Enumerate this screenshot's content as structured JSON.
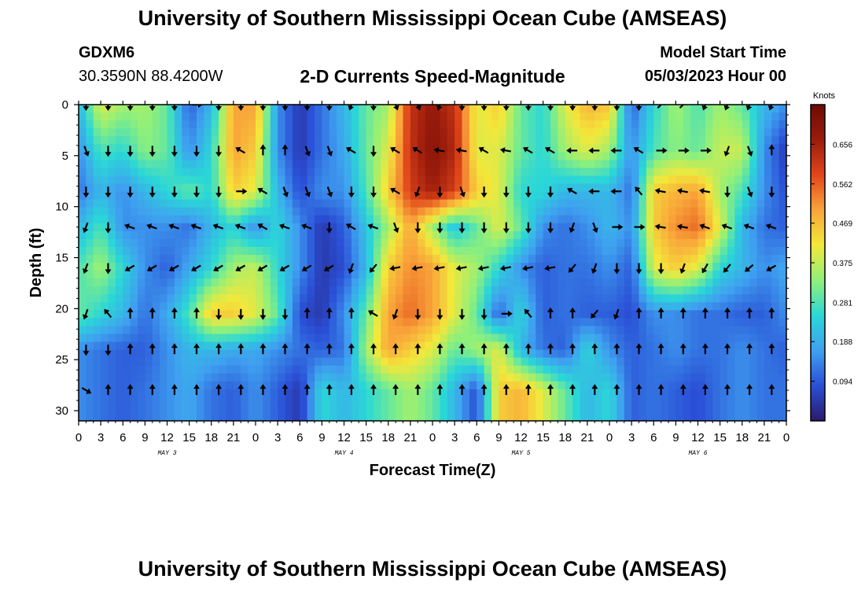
{
  "page": {
    "title": "University of Southern Mississippi Ocean Cube (AMSEAS)",
    "bottom_title": "University of Southern Mississippi Ocean Cube (AMSEAS)",
    "station_id": "GDXM6",
    "station_coords": "30.3590N  88.4200W",
    "subtitle": "2-D Currents Speed-Magnitude",
    "start_label": "Model Start Time",
    "start_value": "05/03/2023 Hour 00"
  },
  "colors": {
    "scale": [
      "#2b1b6b",
      "#2a4fd6",
      "#3fa0f0",
      "#2ad7d7",
      "#8ff07a",
      "#f3e83a",
      "#f9a43a",
      "#e0461a",
      "#9b1c0c",
      "#6e0a05"
    ],
    "arrow": "#000000",
    "frame": "#000000"
  },
  "chart_data": {
    "type": "heatmap",
    "title": "2-D Currents Speed-Magnitude",
    "xlabel": "Forecast Time(Z)",
    "ylabel": "Depth (ft)",
    "colorbar_label": "Knots",
    "colorbar_ticks": [
      "0.656",
      "0.562",
      "0.469",
      "0.375",
      "0.281",
      "0.188",
      "0.094"
    ],
    "colorbar_range": [
      0,
      0.75
    ],
    "x_tick_labels": [
      "0",
      "3",
      "6",
      "9",
      "12",
      "15",
      "18",
      "21",
      "0",
      "3",
      "6",
      "9",
      "12",
      "15",
      "18",
      "21",
      "0",
      "3",
      "6",
      "9",
      "12",
      "15",
      "18",
      "21",
      "0",
      "3",
      "6",
      "9",
      "12",
      "15",
      "18",
      "21",
      "0"
    ],
    "x_range_hours": [
      0,
      96
    ],
    "day_labels": [
      "MAY 3",
      "MAY 4",
      "MAY 5",
      "MAY 6"
    ],
    "y_tick_labels": [
      "0",
      "5",
      "10",
      "15",
      "20",
      "25",
      "30"
    ],
    "y_ticks": [
      0,
      5,
      10,
      15,
      20,
      25,
      30
    ],
    "ylim": [
      0,
      31
    ],
    "depths_ft": [
      0,
      4.5,
      8.5,
      12,
      16,
      20.5,
      24,
      28
    ],
    "times_h": [
      0,
      3,
      6,
      9,
      12,
      15,
      18,
      21,
      24,
      27,
      30,
      33,
      36,
      39,
      42,
      45,
      48,
      51,
      54,
      57,
      60,
      63,
      66,
      69,
      72,
      75,
      78,
      81,
      84,
      87,
      90,
      93,
      96
    ],
    "speed_knots": [
      [
        0.2,
        0.4,
        0.35,
        0.35,
        0.3,
        0.1,
        0.2,
        0.5,
        0.5,
        0.15,
        0.05,
        0.12,
        0.2,
        0.3,
        0.35,
        0.62,
        0.68,
        0.62,
        0.4,
        0.45,
        0.3,
        0.25,
        0.4,
        0.48,
        0.46,
        0.1,
        0.25,
        0.35,
        0.28,
        0.35,
        0.3,
        0.2,
        0.15
      ],
      [
        0.15,
        0.28,
        0.25,
        0.33,
        0.3,
        0.15,
        0.25,
        0.5,
        0.45,
        0.15,
        0.05,
        0.12,
        0.18,
        0.3,
        0.4,
        0.62,
        0.7,
        0.64,
        0.4,
        0.4,
        0.3,
        0.25,
        0.35,
        0.4,
        0.35,
        0.15,
        0.28,
        0.33,
        0.3,
        0.38,
        0.38,
        0.15,
        0.05
      ],
      [
        0.12,
        0.2,
        0.15,
        0.2,
        0.25,
        0.3,
        0.25,
        0.45,
        0.4,
        0.2,
        0.08,
        0.15,
        0.15,
        0.28,
        0.45,
        0.6,
        0.66,
        0.6,
        0.45,
        0.4,
        0.25,
        0.25,
        0.2,
        0.2,
        0.2,
        0.12,
        0.45,
        0.48,
        0.5,
        0.35,
        0.28,
        0.15,
        0.08
      ],
      [
        0.2,
        0.28,
        0.15,
        0.15,
        0.15,
        0.12,
        0.2,
        0.25,
        0.15,
        0.25,
        0.15,
        0.05,
        0.1,
        0.22,
        0.35,
        0.5,
        0.35,
        0.22,
        0.3,
        0.4,
        0.3,
        0.15,
        0.12,
        0.15,
        0.2,
        0.15,
        0.45,
        0.52,
        0.55,
        0.4,
        0.2,
        0.12,
        0.1
      ],
      [
        0.28,
        0.35,
        0.25,
        0.15,
        0.1,
        0.18,
        0.25,
        0.35,
        0.38,
        0.25,
        0.15,
        0.05,
        0.08,
        0.2,
        0.45,
        0.52,
        0.5,
        0.4,
        0.35,
        0.25,
        0.15,
        0.1,
        0.12,
        0.12,
        0.15,
        0.1,
        0.4,
        0.45,
        0.4,
        0.25,
        0.2,
        0.15,
        0.18
      ],
      [
        0.3,
        0.25,
        0.2,
        0.12,
        0.18,
        0.28,
        0.45,
        0.45,
        0.4,
        0.3,
        0.08,
        0.05,
        0.15,
        0.3,
        0.5,
        0.55,
        0.5,
        0.4,
        0.3,
        0.1,
        0.25,
        0.1,
        0.12,
        0.1,
        0.1,
        0.08,
        0.15,
        0.15,
        0.12,
        0.12,
        0.1,
        0.1,
        0.15
      ],
      [
        0.15,
        0.12,
        0.1,
        0.1,
        0.15,
        0.2,
        0.2,
        0.18,
        0.18,
        0.15,
        0.12,
        0.1,
        0.12,
        0.35,
        0.5,
        0.45,
        0.4,
        0.3,
        0.35,
        0.4,
        0.2,
        0.12,
        0.1,
        0.25,
        0.15,
        0.1,
        0.12,
        0.15,
        0.12,
        0.12,
        0.15,
        0.12,
        0.1
      ],
      [
        0.15,
        0.12,
        0.1,
        0.12,
        0.15,
        0.18,
        0.12,
        0.1,
        0.15,
        0.1,
        0.05,
        0.25,
        0.2,
        0.25,
        0.3,
        0.35,
        0.3,
        0.2,
        0.08,
        0.45,
        0.48,
        0.4,
        0.3,
        0.2,
        0.25,
        0.1,
        0.12,
        0.1,
        0.08,
        0.12,
        0.15,
        0.12,
        0.12
      ]
    ],
    "arrow_times_h": [
      1,
      4,
      7,
      10,
      13,
      16,
      19,
      22,
      25,
      28,
      31,
      34,
      37,
      40,
      43,
      46,
      49,
      52,
      55,
      58,
      61,
      64,
      67,
      70,
      73,
      76,
      79,
      82,
      85,
      88,
      91,
      94
    ],
    "arrow_direction_deg": [
      [
        180,
        180,
        180,
        180,
        180,
        90,
        180,
        180,
        180,
        180,
        180,
        180,
        200,
        180,
        160,
        160,
        200,
        180,
        180,
        180,
        180,
        180,
        180,
        180,
        180,
        180,
        45,
        45,
        200,
        200,
        200,
        200
      ],
      [
        160,
        180,
        180,
        180,
        180,
        180,
        180,
        300,
        0,
        0,
        160,
        160,
        300,
        180,
        300,
        300,
        280,
        280,
        300,
        280,
        300,
        300,
        270,
        270,
        270,
        300,
        90,
        90,
        90,
        200,
        160,
        0
      ],
      [
        180,
        180,
        180,
        180,
        180,
        180,
        180,
        90,
        300,
        160,
        160,
        160,
        180,
        180,
        300,
        200,
        180,
        160,
        180,
        180,
        180,
        180,
        300,
        270,
        270,
        320,
        280,
        280,
        280,
        180,
        160,
        180
      ],
      [
        200,
        180,
        290,
        290,
        290,
        290,
        290,
        290,
        300,
        290,
        290,
        180,
        300,
        290,
        160,
        180,
        180,
        180,
        180,
        180,
        180,
        180,
        200,
        160,
        90,
        90,
        280,
        280,
        290,
        290,
        290,
        290
      ],
      [
        200,
        180,
        240,
        240,
        240,
        240,
        240,
        240,
        240,
        240,
        240,
        240,
        200,
        220,
        260,
        260,
        260,
        260,
        260,
        260,
        260,
        260,
        220,
        200,
        180,
        180,
        180,
        200,
        210,
        220,
        230,
        240
      ],
      [
        200,
        320,
        0,
        0,
        0,
        0,
        180,
        180,
        180,
        180,
        0,
        0,
        0,
        300,
        200,
        180,
        180,
        180,
        180,
        90,
        320,
        0,
        0,
        220,
        200,
        0,
        0,
        0,
        0,
        0,
        0,
        0
      ],
      [
        180,
        180,
        0,
        0,
        0,
        0,
        0,
        0,
        0,
        0,
        0,
        0,
        0,
        0,
        0,
        0,
        0,
        0,
        0,
        0,
        0,
        0,
        0,
        0,
        0,
        0,
        0,
        0,
        0,
        0,
        0,
        0
      ],
      [
        120,
        0,
        0,
        0,
        0,
        0,
        0,
        0,
        0,
        0,
        0,
        0,
        0,
        0,
        0,
        0,
        0,
        0,
        0,
        0,
        0,
        0,
        0,
        0,
        0,
        0,
        0,
        0,
        0,
        0,
        0,
        0
      ]
    ]
  }
}
